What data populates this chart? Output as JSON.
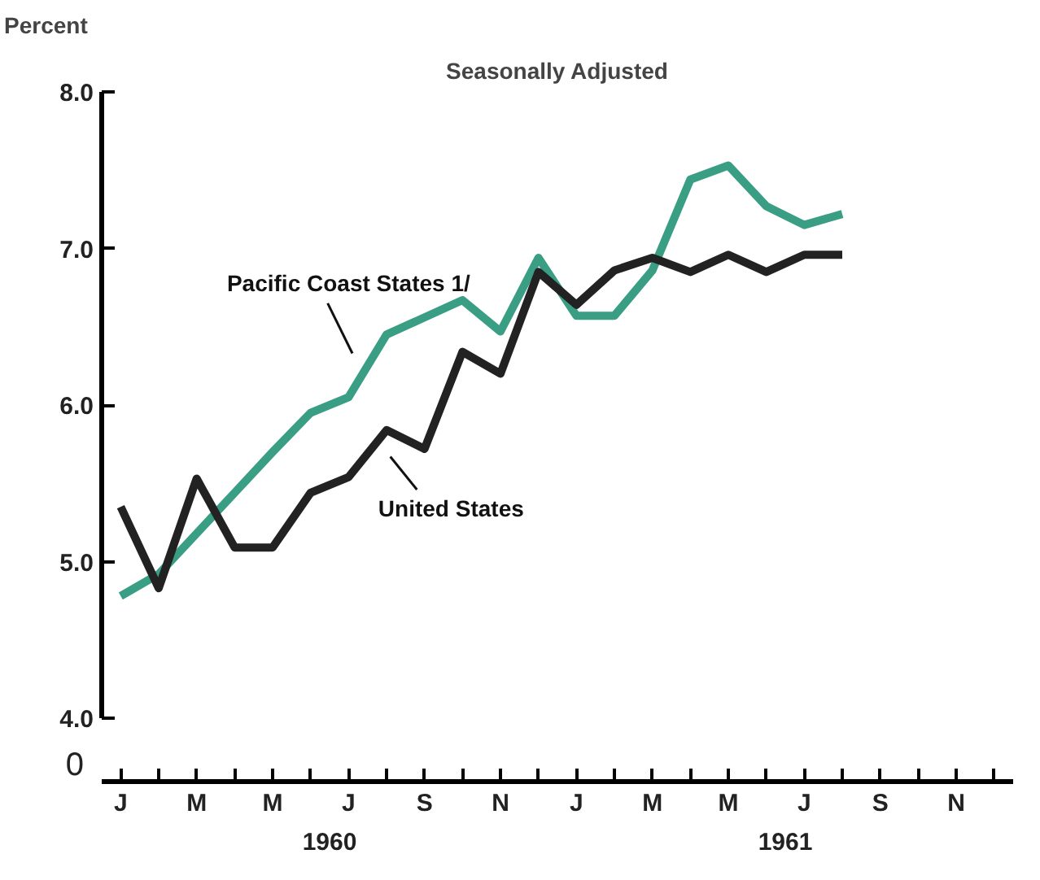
{
  "chart_data": {
    "type": "line",
    "subtitle": "Seasonally Adjusted",
    "ylabel": "Percent",
    "categories": [
      "J",
      null,
      "M",
      null,
      "M",
      null,
      "J",
      null,
      "S",
      null,
      "N",
      null,
      "J",
      null,
      "M",
      null,
      "M",
      null,
      "J",
      null,
      "S",
      null,
      "N",
      null
    ],
    "series": [
      {
        "name": "Pacific Coast States 1/",
        "color": "#3a9e84",
        "values": [
          4.78,
          4.92,
          5.18,
          5.44,
          5.7,
          5.95,
          6.05,
          6.45,
          6.56,
          6.67,
          6.47,
          6.94,
          6.57,
          6.57,
          6.86,
          7.44,
          7.53,
          7.27,
          7.15,
          7.22,
          null,
          null,
          null,
          null
        ]
      },
      {
        "name": "United States",
        "color": "#222222",
        "values": [
          5.35,
          4.83,
          5.53,
          5.09,
          5.09,
          5.44,
          5.54,
          5.84,
          5.72,
          6.34,
          6.2,
          6.85,
          6.64,
          6.86,
          6.94,
          6.85,
          6.96,
          6.85,
          6.96,
          6.96,
          null,
          null,
          null,
          null
        ]
      }
    ],
    "ylim": [
      4.0,
      8.0
    ],
    "yticks": [
      {
        "value": 4,
        "label": "4.0"
      },
      {
        "value": 5,
        "label": "5.0"
      },
      {
        "value": 6,
        "label": "6.0"
      },
      {
        "value": 7,
        "label": "7.0"
      },
      {
        "value": 8,
        "label": "8.0"
      }
    ],
    "annotations": [
      "1960",
      "1961",
      "0"
    ],
    "grid": false,
    "legend": false,
    "line_style": "solid",
    "marker": "none"
  }
}
